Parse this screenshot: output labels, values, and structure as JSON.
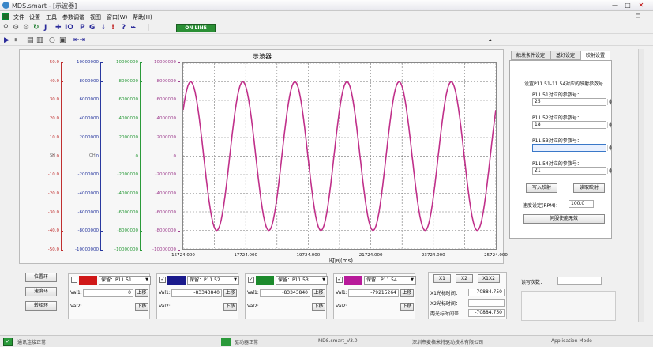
{
  "window": {
    "title": "MDS.smart - [示波器]",
    "btn_min": "—",
    "btn_max": "□",
    "btn_close": "✕",
    "btn_restore": "❐"
  },
  "menu": [
    "文件",
    "设置",
    "工具",
    "参数调谐",
    "视图",
    "窗口(W)",
    "帮助(H)"
  ],
  "toolbar": {
    "online": "ON LINE"
  },
  "scope": {
    "title": "示波器",
    "xlabel": "时间(ms)",
    "axis_units": [
      "SH",
      "OH",
      "",
      "",
      ""
    ],
    "axes": [
      {
        "color": "#c03030",
        "ticks": [
          "50.0",
          "40.0",
          "30.0",
          "20.0",
          "10.0",
          "0.0",
          "-10.0",
          "-20.0",
          "-30.0",
          "-40.0",
          "-50.0"
        ]
      },
      {
        "color": "#2a3aa0",
        "ticks": [
          "10000000",
          "8000000",
          "6000000",
          "4000000",
          "2000000",
          "0",
          "-2000000",
          "-4000000",
          "-6000000",
          "-8000000",
          "-10000000"
        ]
      },
      {
        "color": "#2a9a3a",
        "ticks": [
          "10000000",
          "8000000",
          "6000000",
          "4000000",
          "2000000",
          "0",
          "-2000000",
          "-4000000",
          "-6000000",
          "-8000000",
          "-10000000"
        ]
      },
      {
        "color": "#a04090",
        "ticks": [
          "10000000",
          "8000000",
          "6000000",
          "4000000",
          "2000000",
          "0",
          "-2000000",
          "-4000000",
          "-6000000",
          "-8000000",
          "-10000000"
        ]
      }
    ],
    "x_ticks": [
      "15724.000",
      "17724.000",
      "19724.000",
      "21724.000",
      "23724.000",
      "25724.000"
    ]
  },
  "chart_data": {
    "type": "line",
    "title": "示波器",
    "xlabel": "时间(ms)",
    "xlim": [
      15724.0,
      25724.0
    ],
    "ylim": [
      -10000000,
      10000000
    ],
    "series": [
      {
        "color": "#c0308a",
        "amplitude": 8000000,
        "periods": 6,
        "phase_start": "peak"
      }
    ]
  },
  "right_panel": {
    "tabs": [
      "触发条件设定",
      "基好设定",
      "映射设置"
    ],
    "group_title": "设置P11.51-11.54对应的映射参数号",
    "params": [
      {
        "label": "P11.51对应的参数号：",
        "value": "25"
      },
      {
        "label": "P11.52对应的参数号：",
        "value": "18"
      },
      {
        "label": "P11.53对应的参数号：",
        "value": ""
      },
      {
        "label": "P11.54对应的参数号：",
        "value": "21"
      }
    ],
    "write_btn": "写入映射",
    "read_btn": "读取映射",
    "speed_label": "速度设定(RPM)：",
    "speed_value": "100.0",
    "servo_btn": "伺服使能无效",
    "spin_up": "▲",
    "spin_down": "▼"
  },
  "bottom": {
    "side_buttons": [
      "位置环",
      "速度环",
      "转矩环"
    ],
    "channels": [
      {
        "color": "#d01818",
        "checked": false,
        "select": "保留：P11.51",
        "val1": "0",
        "val2": ""
      },
      {
        "color": "#1a1a8c",
        "checked": true,
        "select": "保留：P11.52",
        "val1": "-83343840",
        "val2": ""
      },
      {
        "color": "#1c8a2c",
        "checked": true,
        "select": "保留：P11.53",
        "val1": "-83343840",
        "val2": ""
      },
      {
        "color": "#b81a9a",
        "checked": true,
        "select": "保留：P11.54",
        "val1": "-79215264",
        "val2": ""
      }
    ],
    "val1_label": "Val1:",
    "val2_label": "Val2:",
    "up_btn": "上移",
    "down_btn": "下移",
    "check_mark": "✓",
    "dropdown_arrow": "▼",
    "cursor_buttons": [
      "X1",
      "X2",
      "X1X2"
    ],
    "cursors": [
      {
        "label": "X1光标时间：",
        "value": "70884.750"
      },
      {
        "label": "X2光标时间：",
        "value": ""
      },
      {
        "label": "两光标时间差：",
        "value": "-70884.750"
      }
    ],
    "read_count_label": "读写次数："
  },
  "status": {
    "items": [
      "通讯连接正常",
      "驱动器正常",
      "MDS.smart_V3.0",
      "深圳市麦格米特驱动技术有限公司",
      "Application Mode"
    ],
    "ok_color": "#2a9a3a"
  }
}
